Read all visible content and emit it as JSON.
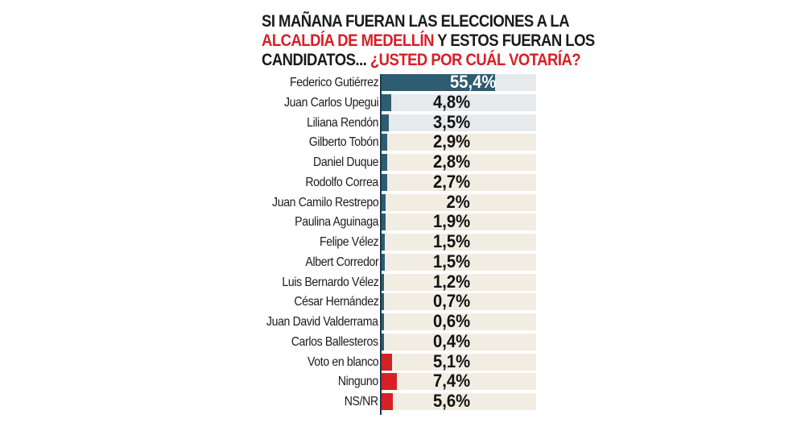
{
  "title": {
    "part1": "SI MAÑANA FUERAN LAS ELECCIONES A LA",
    "part2_red": "ALCALDÍA DE MEDELLÍN",
    "part3": " Y ESTOS FUERAN LOS",
    "part4": "CANDIDATOS... ",
    "part5_red": "¿USTED POR CUÁL VOTARÍA?"
  },
  "colors": {
    "candidate_bar": "#2e5c73",
    "other_bar": "#d71f26",
    "track_top": "#e6eaed",
    "track_rest": "#f1ede3",
    "title_red": "#d71f26"
  },
  "rows": [
    {
      "name": "Federico Gutiérrez",
      "label": "55,4%",
      "value": 55.4,
      "kind": "candidate",
      "track": "blue"
    },
    {
      "name": "Juan Carlos Upegui",
      "label": "4,8%",
      "value": 4.8,
      "kind": "candidate",
      "track": "blue"
    },
    {
      "name": "Liliana Rendón",
      "label": "3,5%",
      "value": 3.5,
      "kind": "candidate",
      "track": "blue"
    },
    {
      "name": "Gilberto Tobón",
      "label": "2,9%",
      "value": 2.9,
      "kind": "candidate",
      "track": "beige"
    },
    {
      "name": "Daniel Duque",
      "label": "2,8%",
      "value": 2.8,
      "kind": "candidate",
      "track": "beige"
    },
    {
      "name": "Rodolfo Correa",
      "label": "2,7%",
      "value": 2.7,
      "kind": "candidate",
      "track": "beige"
    },
    {
      "name": "Juan Camilo Restrepo",
      "label": "2%",
      "value": 2.0,
      "kind": "candidate",
      "track": "beige"
    },
    {
      "name": "Paulina Aguinaga",
      "label": "1,9%",
      "value": 1.9,
      "kind": "candidate",
      "track": "beige"
    },
    {
      "name": "Felipe Vélez",
      "label": "1,5%",
      "value": 1.5,
      "kind": "candidate",
      "track": "beige"
    },
    {
      "name": "Albert Corredor",
      "label": "1,5%",
      "value": 1.5,
      "kind": "candidate",
      "track": "beige"
    },
    {
      "name": "Luis Bernardo Vélez",
      "label": "1,2%",
      "value": 1.2,
      "kind": "candidate",
      "track": "beige"
    },
    {
      "name": "César Hernández",
      "label": "0,7%",
      "value": 0.7,
      "kind": "candidate",
      "track": "beige"
    },
    {
      "name": "Juan David Valderrama",
      "label": "0,6%",
      "value": 0.6,
      "kind": "candidate",
      "track": "beige"
    },
    {
      "name": "Carlos Ballesteros",
      "label": "0,4%",
      "value": 0.4,
      "kind": "candidate",
      "track": "beige"
    },
    {
      "name": "Voto en blanco",
      "label": "5,1%",
      "value": 5.1,
      "kind": "other",
      "track": "beige"
    },
    {
      "name": "Ninguno",
      "label": "7,4%",
      "value": 7.4,
      "kind": "other",
      "track": "beige"
    },
    {
      "name": "NS/NR",
      "label": "5,6%",
      "value": 5.6,
      "kind": "other",
      "track": "beige"
    }
  ],
  "chart_data": {
    "type": "bar",
    "orientation": "horizontal",
    "title": "SI MAÑANA FUERAN LAS ELECCIONES A LA ALCALDÍA DE MEDELLÍN Y ESTOS FUERAN LOS CANDIDATOS... ¿USTED POR CUÁL VOTARÍA?",
    "xlabel": "",
    "ylabel": "",
    "categories": [
      "Federico Gutiérrez",
      "Juan Carlos Upegui",
      "Liliana Rendón",
      "Gilberto Tobón",
      "Daniel Duque",
      "Rodolfo Correa",
      "Juan Camilo Restrepo",
      "Paulina Aguinaga",
      "Felipe Vélez",
      "Albert Corredor",
      "Luis Bernardo Vélez",
      "César Hernández",
      "Juan David Valderrama",
      "Carlos Ballesteros",
      "Voto en blanco",
      "Ninguno",
      "NS/NR"
    ],
    "values": [
      55.4,
      4.8,
      3.5,
      2.9,
      2.8,
      2.7,
      2.0,
      1.9,
      1.5,
      1.5,
      1.2,
      0.7,
      0.6,
      0.4,
      5.1,
      7.4,
      5.6
    ],
    "data_labels": [
      "55,4%",
      "4,8%",
      "3,5%",
      "2,9%",
      "2,8%",
      "2,7%",
      "2%",
      "1,9%",
      "1,5%",
      "1,5%",
      "1,2%",
      "0,7%",
      "0,6%",
      "0,4%",
      "5,1%",
      "7,4%",
      "5,6%"
    ],
    "unit": "%",
    "grid": false,
    "legend": null
  }
}
